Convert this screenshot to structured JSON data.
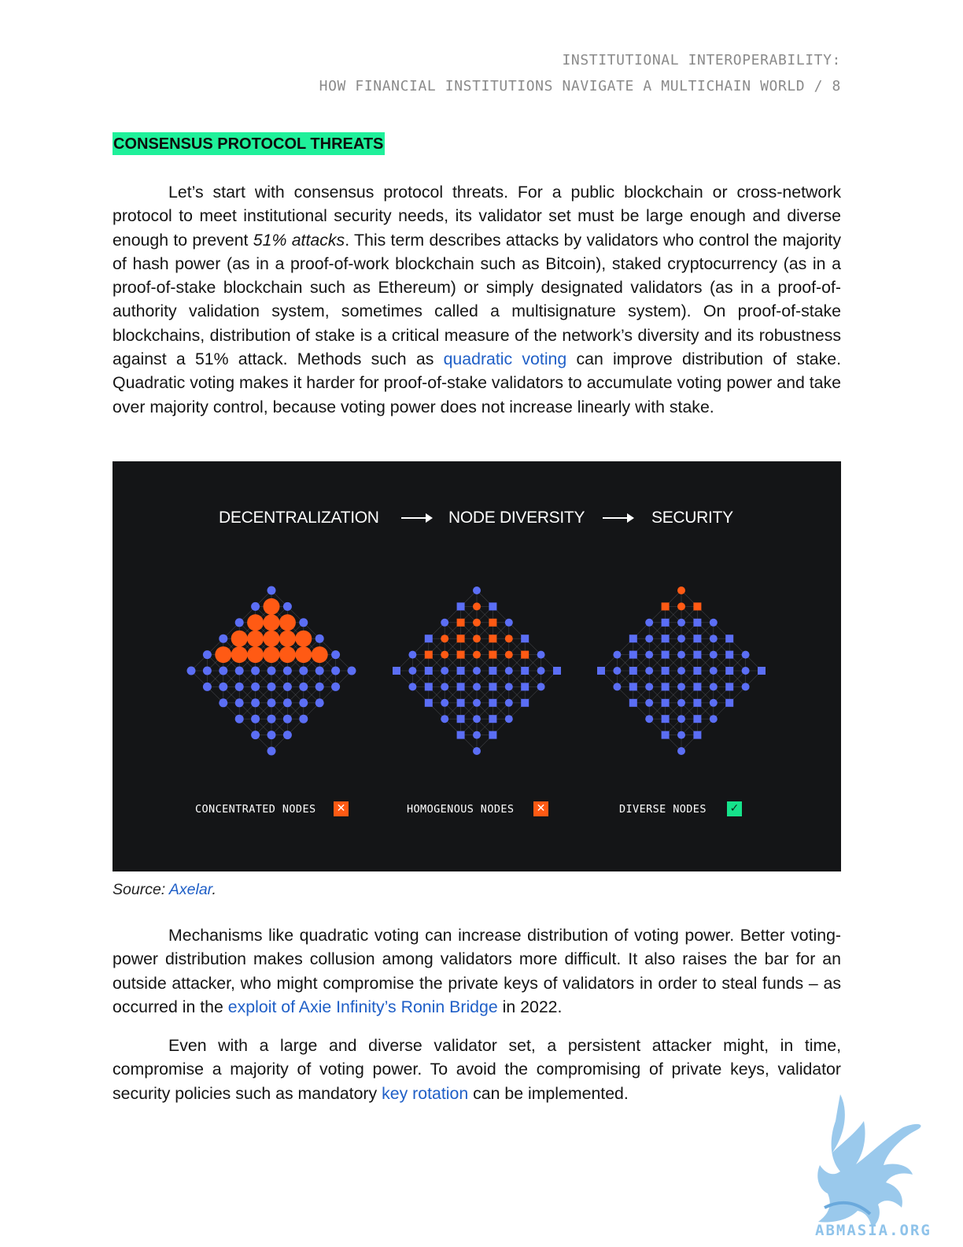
{
  "header": {
    "line1": "INSTITUTIONAL INTEROPERABILITY:",
    "line2": "HOW FINANCIAL INSTITUTIONS NAVIGATE A MULTICHAIN WORLD / 8"
  },
  "section_heading": "CONSENSUS PROTOCOL THREATS",
  "paragraph1": {
    "t1": "Let’s start with consensus protocol threats. For a public blockchain or cross-network protocol to meet institutional security needs, its validator set must be large enough and diverse enough to prevent ",
    "em": "51% attacks",
    "t2": ". This term describes attacks by validators who control the majority of hash power (as in a proof-of-work blockchain such as Bitcoin), staked cryptocurrency (as in a proof-of-stake blockchain such as Ethereum) or simply designated validators (as in a proof-of-authority validation system, sometimes called a multisignature system). On proof-of-stake blockchains, distribution of stake is a critical measure of the network’s diversity and its robustness against a 51% attack. Methods such as ",
    "link": "quadratic voting",
    "t3": " can improve distribution of stake. Quadratic voting makes it harder for proof-of-stake validators to accumulate voting power and take over majority control, because voting power does not increase linearly with stake."
  },
  "figure": {
    "flow": [
      "DECENTRALIZATION",
      "NODE DIVERSITY",
      "SECURITY"
    ],
    "panels": [
      {
        "label": "CONCENTRATED NODES",
        "status": "✕"
      },
      {
        "label": "HOMOGENOUS NODES",
        "status": "✕"
      },
      {
        "label": "DIVERSE NODES",
        "status": "✓"
      }
    ],
    "colors": {
      "background": "#141517",
      "orange": "#ff5a14",
      "blue": "#5b6ef5",
      "green": "#16e38b"
    }
  },
  "source": {
    "prefix": "Source: ",
    "link": "Axelar",
    "suffix": "."
  },
  "paragraph2": {
    "t1": "Mechanisms like quadratic voting can increase distribution of voting power. Better voting-power distribution makes collusion among validators more difficult. It also raises the bar for an outside attacker, who might compromise the private keys of validators in order to steal funds – as occurred in the ",
    "link": "exploit of Axie Infinity’s Ronin Bridge",
    "t2": " in 2022."
  },
  "paragraph3": {
    "t1": "Even with a large and diverse validator set, a persistent attacker might, in time, compromise a majority of voting power. To avoid the compromising of private keys, validator security policies such as mandatory ",
    "link": "key rotation",
    "t2": " can be implemented."
  },
  "watermark": "ABMASIA.ORG"
}
